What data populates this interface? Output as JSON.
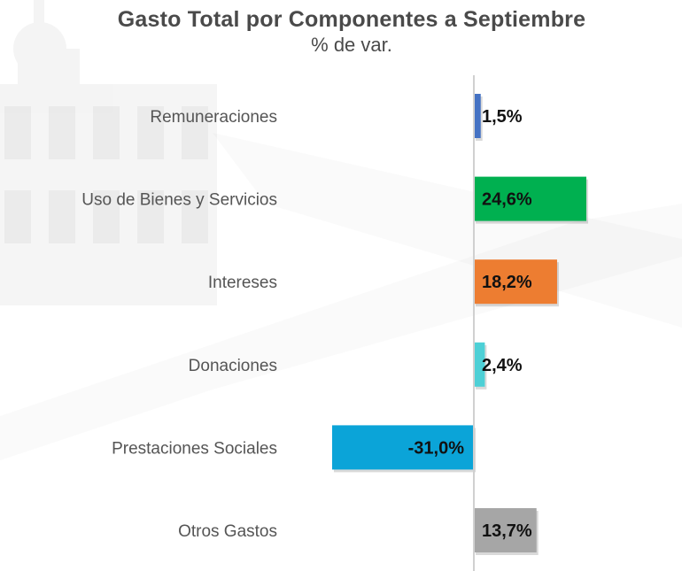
{
  "chart_data": {
    "type": "bar",
    "orientation": "horizontal",
    "title": "Gasto Total por Componentes a Septiembre",
    "subtitle": "% de var.",
    "xlabel": "",
    "ylabel": "",
    "xlim": [
      -31.0,
      24.6
    ],
    "grid": false,
    "legend": "none",
    "categories": [
      "Remuneraciones",
      "Uso de Bienes y Servicios",
      "Intereses",
      "Donaciones",
      "Prestaciones Sociales",
      "Otros Gastos"
    ],
    "values": [
      1.5,
      24.6,
      18.2,
      2.4,
      -31.0,
      13.7
    ],
    "value_labels": [
      "1,5%",
      "24,6%",
      "18,2%",
      "2,4%",
      "-31,0%",
      "13,7%"
    ],
    "colors": [
      "#4472c4",
      "#00b050",
      "#ed7d31",
      "#4dd0d6",
      "#0ba4d8",
      "#a6a6a6"
    ]
  }
}
